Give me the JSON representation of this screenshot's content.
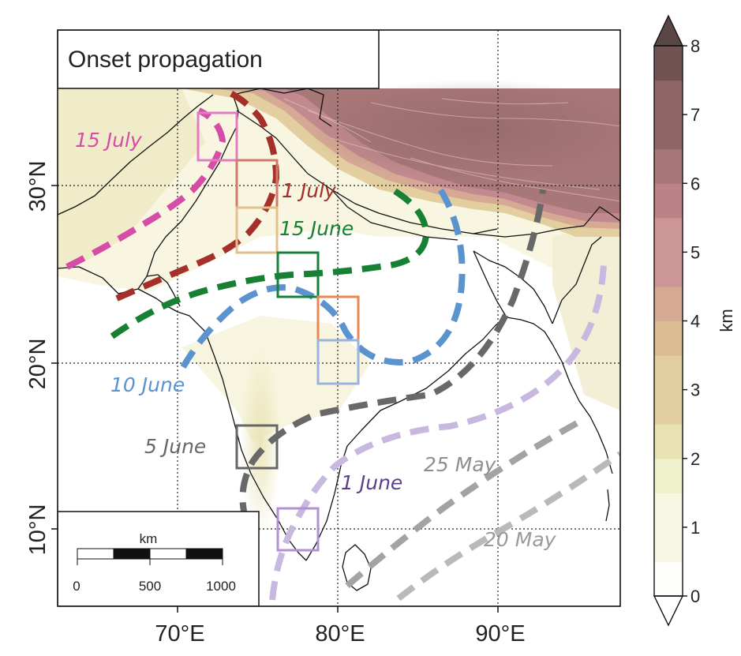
{
  "map": {
    "title": "Onset propagation",
    "x_ticks": [
      {
        "value": 70,
        "label": "70°E"
      },
      {
        "value": 80,
        "label": "80°E"
      },
      {
        "value": 90,
        "label": "90°E"
      }
    ],
    "y_ticks": [
      {
        "value": 30,
        "label": "30°N"
      },
      {
        "value": 20,
        "label": "20°N"
      },
      {
        "value": 10,
        "label": "10°N"
      }
    ],
    "lon_range": [
      62.5,
      97.5
    ],
    "lat_range": [
      5.5,
      36.0
    ],
    "terrain_colormap": [
      "#fdfdfb",
      "#f7f7e4",
      "#eff0cc",
      "#e8e2b2",
      "#e2ce9e",
      "#dbbb92",
      "#d5a994",
      "#cc9596",
      "#bc8386",
      "#a87777",
      "#8f6566",
      "#725354"
    ]
  },
  "colorbar": {
    "unit_label": "km",
    "ticks": [
      "0",
      "1",
      "2",
      "3",
      "4",
      "5",
      "6",
      "7",
      "8"
    ],
    "min": 0,
    "max": 8,
    "extend": "both"
  },
  "scale_bar": {
    "unit": "km",
    "labels": [
      "0",
      "500",
      "1000"
    ]
  },
  "isochrones": [
    {
      "label": "20 May",
      "color": "#b9b9b9"
    },
    {
      "label": "25 May",
      "color": "#a3a3a3"
    },
    {
      "label": "1 June",
      "color": "#c8b8e0",
      "label_color": "#5b3f8c"
    },
    {
      "label": "5 June",
      "color": "#686868"
    },
    {
      "label": "10 June",
      "color": "#5b93cf"
    },
    {
      "label": "15 June",
      "color": "#178033"
    },
    {
      "label": "1 July",
      "color": "#a5302b"
    },
    {
      "label": "15 July",
      "color": "#d54da6"
    }
  ],
  "boxes": [
    {
      "name": "box-pink",
      "color": "#e07cc2"
    },
    {
      "name": "box-red",
      "color": "#d07a6e"
    },
    {
      "name": "box-tan",
      "color": "#e3c08a"
    },
    {
      "name": "box-green",
      "color": "#17803a"
    },
    {
      "name": "box-orange",
      "color": "#e8874f"
    },
    {
      "name": "box-lightblue",
      "color": "#9bb2dc"
    },
    {
      "name": "box-gray",
      "color": "#666666"
    },
    {
      "name": "box-purple",
      "color": "#b48fd1"
    }
  ]
}
